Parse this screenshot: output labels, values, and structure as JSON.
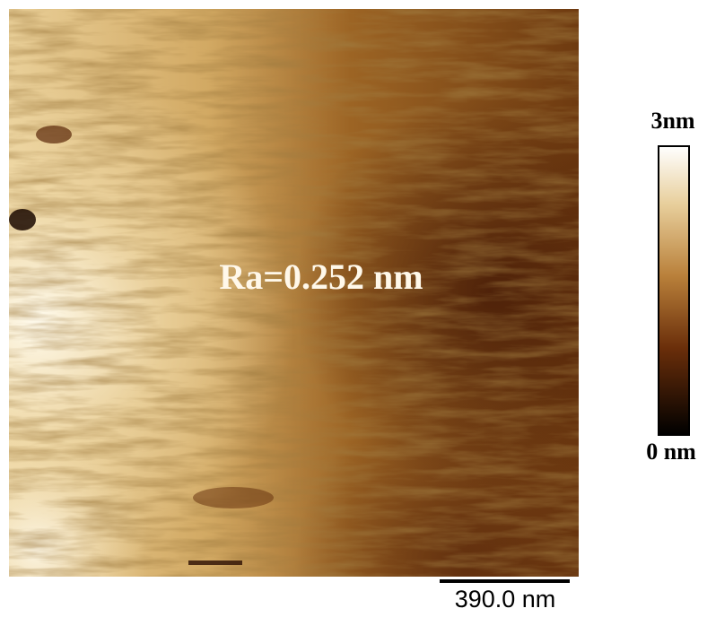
{
  "image": {
    "annotation": "Ra=0.252 nm",
    "colorbar": {
      "max_label": "3nm",
      "min_label": "0 nm"
    },
    "scale_bar": {
      "label": "390.0 nm"
    }
  }
}
